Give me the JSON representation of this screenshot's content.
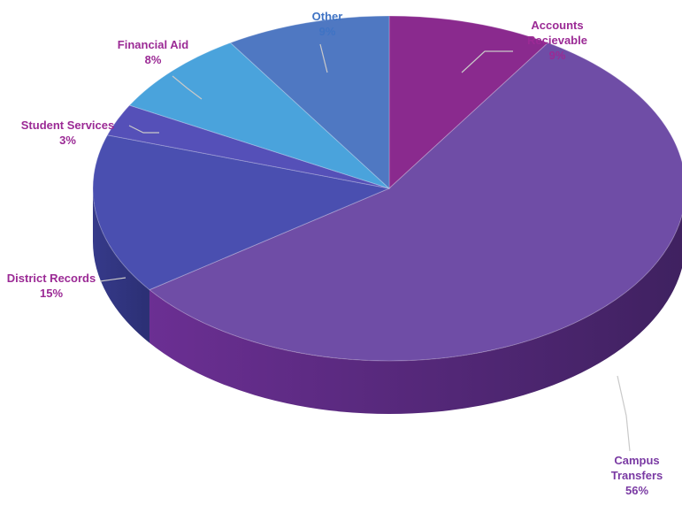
{
  "chart_data": {
    "type": "pie",
    "title": "",
    "slices": [
      {
        "name": "Accounts Recievable",
        "label_lines": [
          "Accounts",
          "Recievable"
        ],
        "pct_text": "9%",
        "value": 9,
        "color": "#8a2a8e",
        "label_color": "#9b2a95"
      },
      {
        "name": "Campus Transfers",
        "label_lines": [
          "Campus",
          "Transfers"
        ],
        "pct_text": "56%",
        "value": 56,
        "color": "#6f4da6",
        "label_color": "#7a3aa3"
      },
      {
        "name": "District Records",
        "label_lines": [
          "District Records"
        ],
        "pct_text": "15%",
        "value": 15,
        "color": "#4a4fb0",
        "label_color": "#9b2a95"
      },
      {
        "name": "Student Services",
        "label_lines": [
          "Student Services"
        ],
        "pct_text": "3%",
        "value": 3,
        "color": "#5550b8",
        "label_color": "#9b2a95"
      },
      {
        "name": "Financial Aid",
        "label_lines": [
          "Financial Aid"
        ],
        "pct_text": "8%",
        "value": 8,
        "color": "#4aa3dc",
        "label_color": "#9b2a95"
      },
      {
        "name": "Other",
        "label_lines": [
          "Other"
        ],
        "pct_text": "9%",
        "value": 9,
        "color": "#4f78c2",
        "label_color": "#3f73c4"
      }
    ]
  }
}
